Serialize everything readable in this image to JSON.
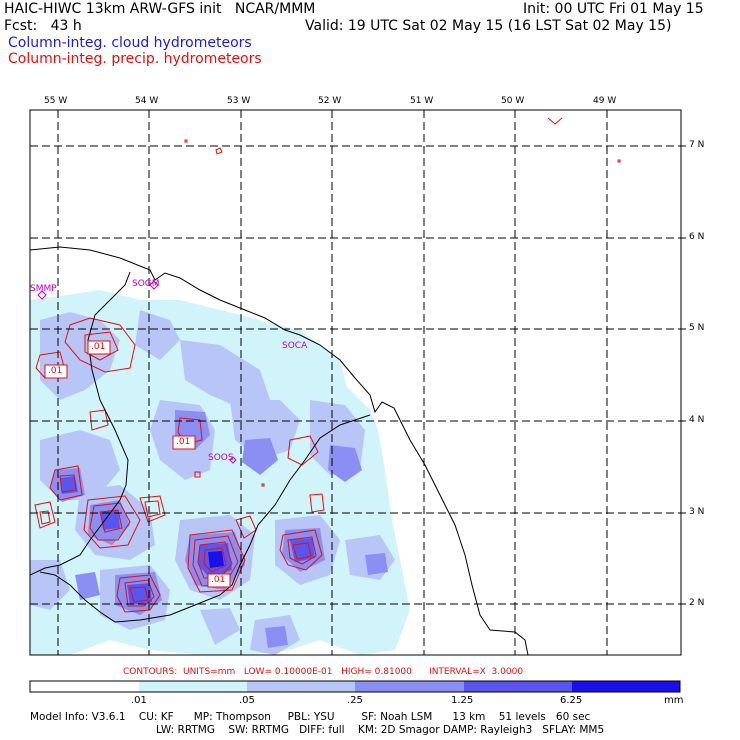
{
  "header": {
    "model": "HAIC-HIWC 13km ARW-GFS init   NCAR/MMM",
    "fcst": "Fcst:   43 h",
    "init": "Init: 00 UTC Fri 01 May 15",
    "valid": "Valid: 19 UTC Sat 02 May 15 (16 LST Sat 02 May 15)"
  },
  "legend": {
    "cloud": "Column-integ. cloud hydrometeors",
    "precip": "Column-integ. precip. hydrometeors",
    "cloud_color": "#1c1cd6",
    "precip_color": "#e01010"
  },
  "map": {
    "lon_labels": [
      "55 W",
      "54 W",
      "53 W",
      "52 W",
      "51 W",
      "50 W",
      "49 W"
    ],
    "lat_labels": [
      "7 N",
      "6 N",
      "5 N",
      "4 N",
      "3 N",
      "2 N"
    ],
    "stations": [
      "SMMP",
      "SOGM",
      "SOCA",
      "SOOS"
    ],
    "contour_labels": [
      ".01",
      ".01",
      ".01",
      ".01"
    ]
  },
  "contours_info": "CONTOURS:  UNITS=mm   LOW= 0.10000E-01   HIGH= 0.81000      INTERVAL=X  3.0000",
  "colorbar": {
    "labels": [
      ".01",
      ".05",
      ".25",
      "1.25",
      "6.25",
      "mm"
    ],
    "colors": [
      "#ffffff",
      "#d0f4fa",
      "#b8c6f7",
      "#8b8ef2",
      "#5a55ef",
      "#1a10ee"
    ]
  },
  "model_info": {
    "line1": "Model Info: V3.6.1    CU: KF      MP: Thompson     PBL: YSU        SF: Noah LSM      13 km    51 levels   60 sec",
    "line2": "LW: RRTMG    SW: RRTMG   DIFF: full    KM: 2D Smagor DAMP: Rayleigh3   SFLAY: MM5"
  }
}
